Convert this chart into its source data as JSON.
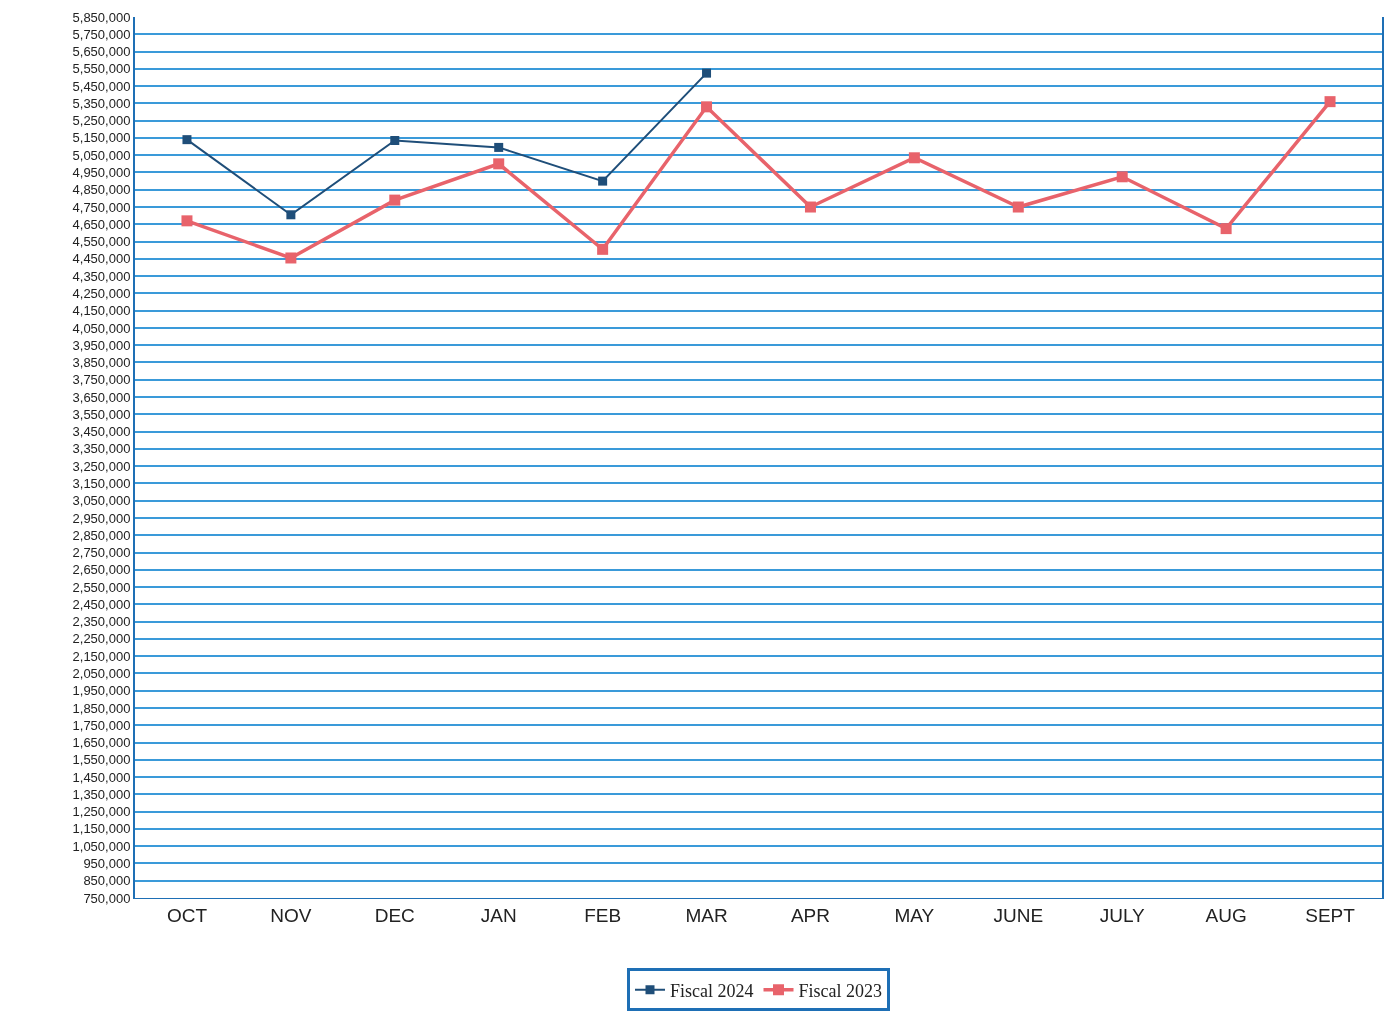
{
  "chart_data": {
    "type": "line",
    "categories": [
      "OCT",
      "NOV",
      "DEC",
      "JAN",
      "FEB",
      "MAR",
      "APR",
      "MAY",
      "JUNE",
      "JULY",
      "AUG",
      "SEPT"
    ],
    "series": [
      {
        "name": "Fiscal 2024",
        "color": "#1f4e79",
        "values": [
          5140000,
          4705000,
          5135000,
          5095000,
          4900000,
          5525000,
          null,
          null,
          null,
          null,
          null,
          null
        ]
      },
      {
        "name": "Fiscal 2023",
        "color": "#e8636b",
        "values": [
          4670000,
          4455000,
          4790000,
          5000000,
          4505000,
          5330000,
          4750000,
          5035000,
          4750000,
          4925000,
          4625000,
          5360000
        ]
      }
    ],
    "ylim": [
      750000,
      5850000
    ],
    "yticks": [
      {
        "value": 750000,
        "label": "750,000"
      },
      {
        "value": 850000,
        "label": "850,000"
      },
      {
        "value": 950000,
        "label": "950,000"
      },
      {
        "value": 1050000,
        "label": "1,050,000"
      },
      {
        "value": 1150000,
        "label": "1,150,000"
      },
      {
        "value": 1250000,
        "label": "1,250,000"
      },
      {
        "value": 1350000,
        "label": "1,350,000"
      },
      {
        "value": 1450000,
        "label": "1,450,000"
      },
      {
        "value": 1550000,
        "label": "1,550,000"
      },
      {
        "value": 1650000,
        "label": "1,650,000"
      },
      {
        "value": 1750000,
        "label": "1,750,000"
      },
      {
        "value": 1850000,
        "label": "1,850,000"
      },
      {
        "value": 1950000,
        "label": "1,950,000"
      },
      {
        "value": 2050000,
        "label": "2,050,000"
      },
      {
        "value": 2150000,
        "label": "2,150,000"
      },
      {
        "value": 2250000,
        "label": "2,250,000"
      },
      {
        "value": 2350000,
        "label": "2,350,000"
      },
      {
        "value": 2450000,
        "label": "2,450,000"
      },
      {
        "value": 2550000,
        "label": "2,550,000"
      },
      {
        "value": 2650000,
        "label": "2,650,000"
      },
      {
        "value": 2750000,
        "label": "2,750,000"
      },
      {
        "value": 2850000,
        "label": "2,850,000"
      },
      {
        "value": 2950000,
        "label": "2,950,000"
      },
      {
        "value": 3050000,
        "label": "3,050,000"
      },
      {
        "value": 3150000,
        "label": "3,150,000"
      },
      {
        "value": 3250000,
        "label": "3,250,000"
      },
      {
        "value": 3350000,
        "label": "3,350,000"
      },
      {
        "value": 3450000,
        "label": "3,450,000"
      },
      {
        "value": 3550000,
        "label": "3,550,000"
      },
      {
        "value": 3650000,
        "label": "3,650,000"
      },
      {
        "value": 3750000,
        "label": "3,750,000"
      },
      {
        "value": 3850000,
        "label": "3,850,000"
      },
      {
        "value": 3950000,
        "label": "3,950,000"
      },
      {
        "value": 4050000,
        "label": "4,050,000"
      },
      {
        "value": 4150000,
        "label": "4,150,000"
      },
      {
        "value": 4250000,
        "label": "4,250,000"
      },
      {
        "value": 4350000,
        "label": "4,350,000"
      },
      {
        "value": 4450000,
        "label": "4,450,000"
      },
      {
        "value": 4550000,
        "label": "4,550,000"
      },
      {
        "value": 4650000,
        "label": "4,650,000"
      },
      {
        "value": 4750000,
        "label": "4,750,000"
      },
      {
        "value": 4850000,
        "label": "4,850,000"
      },
      {
        "value": 4950000,
        "label": "4,950,000"
      },
      {
        "value": 5050000,
        "label": "5,050,000"
      },
      {
        "value": 5150000,
        "label": "5,150,000"
      },
      {
        "value": 5250000,
        "label": "5,250,000"
      },
      {
        "value": 5350000,
        "label": "5,350,000"
      },
      {
        "value": 5450000,
        "label": "5,450,000"
      },
      {
        "value": 5550000,
        "label": "5,550,000"
      },
      {
        "value": 5650000,
        "label": "5,650,000"
      },
      {
        "value": 5750000,
        "label": "5,750,000"
      },
      {
        "value": 5850000,
        "label": "5,850,000"
      }
    ],
    "grid": "y",
    "legend": "bottom",
    "marker": "square",
    "line_style": "solid"
  }
}
